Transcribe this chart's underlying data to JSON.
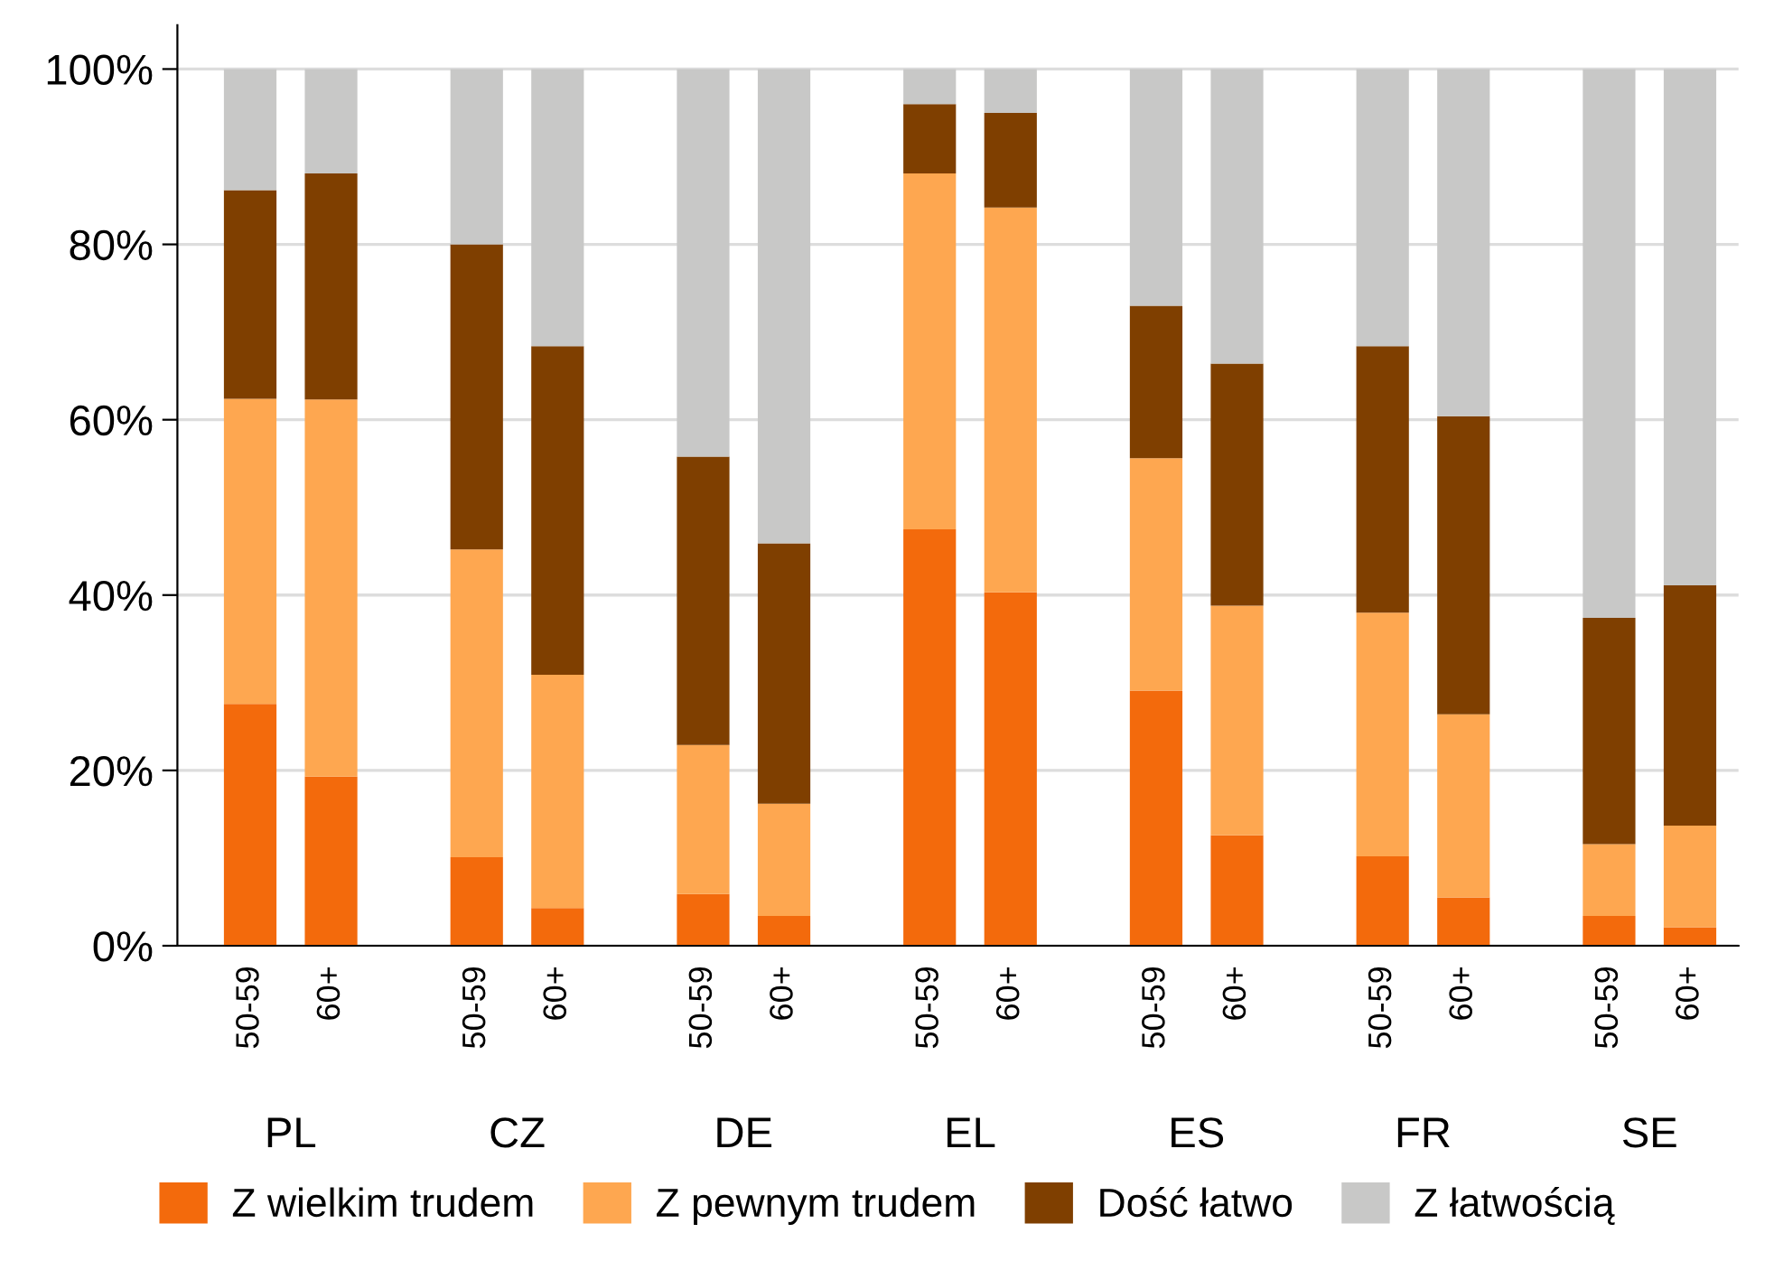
{
  "chart_data": {
    "type": "bar",
    "stacked": true,
    "categories": [
      "50-59",
      "60+",
      "50-59",
      "60+",
      "50-59",
      "60+",
      "50-59",
      "60+",
      "50-59",
      "60+",
      "50-59",
      "60+",
      "50-59",
      "60+"
    ],
    "annotations": [
      "PL",
      "CZ",
      "DE",
      "EL",
      "ES",
      "FR",
      "SE"
    ],
    "series": [
      {
        "name": "Z wielkim trudem",
        "color": "#f36a0c",
        "values": [
          27.6,
          19.3,
          10.1,
          4.3,
          5.9,
          3.4,
          47.5,
          40.3,
          29.1,
          12.6,
          10.2,
          5.5,
          3.4,
          2.1
        ]
      },
      {
        "name": "Z pewnym trudem",
        "color": "#fea750",
        "values": [
          34.8,
          43.0,
          35.1,
          26.6,
          17.0,
          12.8,
          40.6,
          43.9,
          26.5,
          26.2,
          27.8,
          20.9,
          8.2,
          11.6
        ]
      },
      {
        "name": "Dość łatwo",
        "color": "#7f3f00",
        "values": [
          23.8,
          25.8,
          34.8,
          37.5,
          32.9,
          29.7,
          7.9,
          10.8,
          17.4,
          27.6,
          30.4,
          34.0,
          25.8,
          27.4
        ]
      },
      {
        "name": "Z łatwością",
        "color": "#c8c8c7",
        "values": [
          13.8,
          11.9,
          20.0,
          31.6,
          44.2,
          54.1,
          4.0,
          5.0,
          27.0,
          33.6,
          31.6,
          39.6,
          62.6,
          58.9
        ]
      }
    ],
    "ylim": [
      0,
      105
    ],
    "yticks": [
      {
        "value": 0,
        "label": "0%"
      },
      {
        "value": 20,
        "label": "20%"
      },
      {
        "value": 40,
        "label": "40%"
      },
      {
        "value": 60,
        "label": "60%"
      },
      {
        "value": 80,
        "label": "80%"
      },
      {
        "value": 100,
        "label": "100%"
      }
    ],
    "grid": "y",
    "legend": "bottom"
  }
}
